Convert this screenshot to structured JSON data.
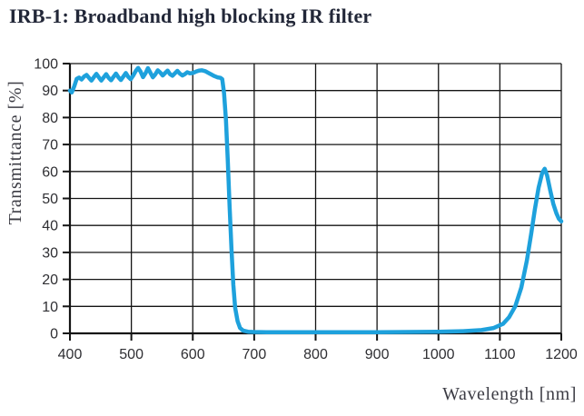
{
  "page": {
    "title": "IRB-1: Broadband high blocking IR filter"
  },
  "colors": {
    "background": "#ffffff",
    "grid": "#141414",
    "axis": "#141414",
    "axis_text": "#2f2f33",
    "axis_title_text": "#3c3c44",
    "title_text": "#222738",
    "curve": "#1ea1dc"
  },
  "chart_data": {
    "type": "line",
    "title": "IRB-1: Broadband high blocking IR filter",
    "xlabel": "Wavelength [nm]",
    "ylabel": "Transmittance [%]",
    "xlim": [
      400,
      1200
    ],
    "ylim": [
      0,
      100
    ],
    "xticks": [
      400,
      500,
      600,
      700,
      800,
      900,
      1000,
      1100,
      1200
    ],
    "yticks": [
      0,
      10,
      20,
      30,
      40,
      50,
      60,
      70,
      80,
      90,
      100
    ],
    "grid": true,
    "legend_position": "none",
    "line_color": "#1ea1dc",
    "line_width": 4.5,
    "series": [
      {
        "name": "IRB-1 transmittance",
        "points": [
          [
            400,
            90.0
          ],
          [
            403,
            89.3
          ],
          [
            407,
            91.5
          ],
          [
            411,
            94.3
          ],
          [
            415,
            94.8
          ],
          [
            419,
            94.1
          ],
          [
            423,
            95.2
          ],
          [
            427,
            95.8
          ],
          [
            431,
            94.7
          ],
          [
            435,
            93.7
          ],
          [
            439,
            95.0
          ],
          [
            443,
            96.2
          ],
          [
            447,
            94.9
          ],
          [
            451,
            93.7
          ],
          [
            455,
            94.9
          ],
          [
            459,
            96.1
          ],
          [
            463,
            94.7
          ],
          [
            467,
            93.8
          ],
          [
            471,
            95.1
          ],
          [
            475,
            96.3
          ],
          [
            479,
            94.9
          ],
          [
            483,
            93.9
          ],
          [
            487,
            95.2
          ],
          [
            491,
            96.5
          ],
          [
            495,
            95.1
          ],
          [
            499,
            94.2
          ],
          [
            503,
            95.6
          ],
          [
            507,
            97.2
          ],
          [
            511,
            98.4
          ],
          [
            515,
            97.0
          ],
          [
            519,
            95.0
          ],
          [
            523,
            96.4
          ],
          [
            527,
            98.3
          ],
          [
            531,
            96.6
          ],
          [
            535,
            94.9
          ],
          [
            539,
            96.0
          ],
          [
            543,
            97.5
          ],
          [
            547,
            96.7
          ],
          [
            551,
            95.6
          ],
          [
            555,
            96.5
          ],
          [
            559,
            97.4
          ],
          [
            563,
            96.1
          ],
          [
            567,
            95.5
          ],
          [
            571,
            96.4
          ],
          [
            575,
            97.3
          ],
          [
            579,
            96.3
          ],
          [
            583,
            95.6
          ],
          [
            587,
            96.1
          ],
          [
            591,
            96.8
          ],
          [
            595,
            96.4
          ],
          [
            600,
            96.5
          ],
          [
            605,
            97.0
          ],
          [
            610,
            97.4
          ],
          [
            615,
            97.5
          ],
          [
            620,
            97.2
          ],
          [
            625,
            96.6
          ],
          [
            630,
            96.0
          ],
          [
            635,
            95.4
          ],
          [
            640,
            94.9
          ],
          [
            645,
            94.7
          ],
          [
            648,
            94.2
          ],
          [
            651,
            89.0
          ],
          [
            654,
            79.0
          ],
          [
            657,
            64.0
          ],
          [
            660,
            47.0
          ],
          [
            663,
            31.0
          ],
          [
            666,
            18.0
          ],
          [
            669,
            9.5
          ],
          [
            673,
            4.5
          ],
          [
            677,
            2.0
          ],
          [
            682,
            1.0
          ],
          [
            690,
            0.6
          ],
          [
            700,
            0.5
          ],
          [
            720,
            0.45
          ],
          [
            750,
            0.4
          ],
          [
            800,
            0.4
          ],
          [
            850,
            0.4
          ],
          [
            900,
            0.45
          ],
          [
            950,
            0.5
          ],
          [
            1000,
            0.6
          ],
          [
            1040,
            0.8
          ],
          [
            1070,
            1.2
          ],
          [
            1090,
            2.0
          ],
          [
            1105,
            3.5
          ],
          [
            1115,
            6.0
          ],
          [
            1125,
            10.0
          ],
          [
            1135,
            17.0
          ],
          [
            1144,
            27.0
          ],
          [
            1151,
            37.0
          ],
          [
            1157,
            46.0
          ],
          [
            1163,
            54.0
          ],
          [
            1169,
            59.5
          ],
          [
            1173,
            61.0
          ],
          [
            1177,
            58.5
          ],
          [
            1182,
            53.0
          ],
          [
            1187,
            48.0
          ],
          [
            1192,
            44.5
          ],
          [
            1196,
            42.5
          ],
          [
            1200,
            41.5
          ]
        ]
      }
    ]
  }
}
